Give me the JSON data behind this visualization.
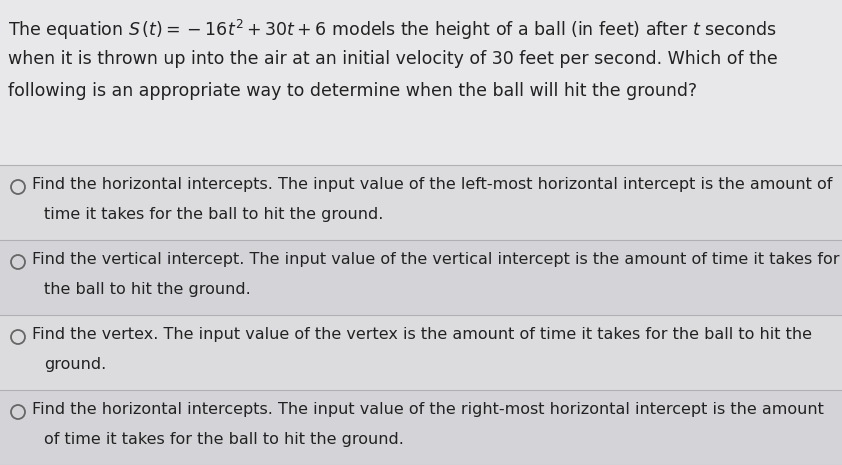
{
  "background_color": "#c8c8cc",
  "title_bg_color": "#e8e8ea",
  "option_bg_even": "#dcdcde",
  "option_bg_odd": "#d4d4d8",
  "text_color": "#222222",
  "line_color": "#b0b0b4",
  "circle_color": "#666666",
  "title_line1": "The equation $S\\,(t) = -16t^2 + 30t + 6$ models the height of a ball (in feet) after $t$ seconds",
  "title_line2": "when it is thrown up into the air at an initial velocity of 30 feet per second. Which of the",
  "title_line3": "following is an appropriate way to determine when the ball will hit the ground?",
  "options": [
    {
      "line1": "Find the horizontal intercepts. The input value of the left-most horizontal intercept is the amount of",
      "line2": "time it takes for the ball to hit the ground."
    },
    {
      "line1": "Find the vertical intercept. The input value of the vertical intercept is the amount of time it takes for",
      "line2": "the ball to hit the ground."
    },
    {
      "line1": "Find the vertex. The input value of the vertex is the amount of time it takes for the ball to hit the",
      "line2": "ground."
    },
    {
      "line1": "Find the horizontal intercepts. The input value of the right-most horizontal intercept is the amount",
      "line2": "of time it takes for the ball to hit the ground."
    }
  ],
  "fontsize_title": 12.5,
  "fontsize_option": 11.5,
  "fig_width": 8.42,
  "fig_height": 4.65,
  "dpi": 100
}
